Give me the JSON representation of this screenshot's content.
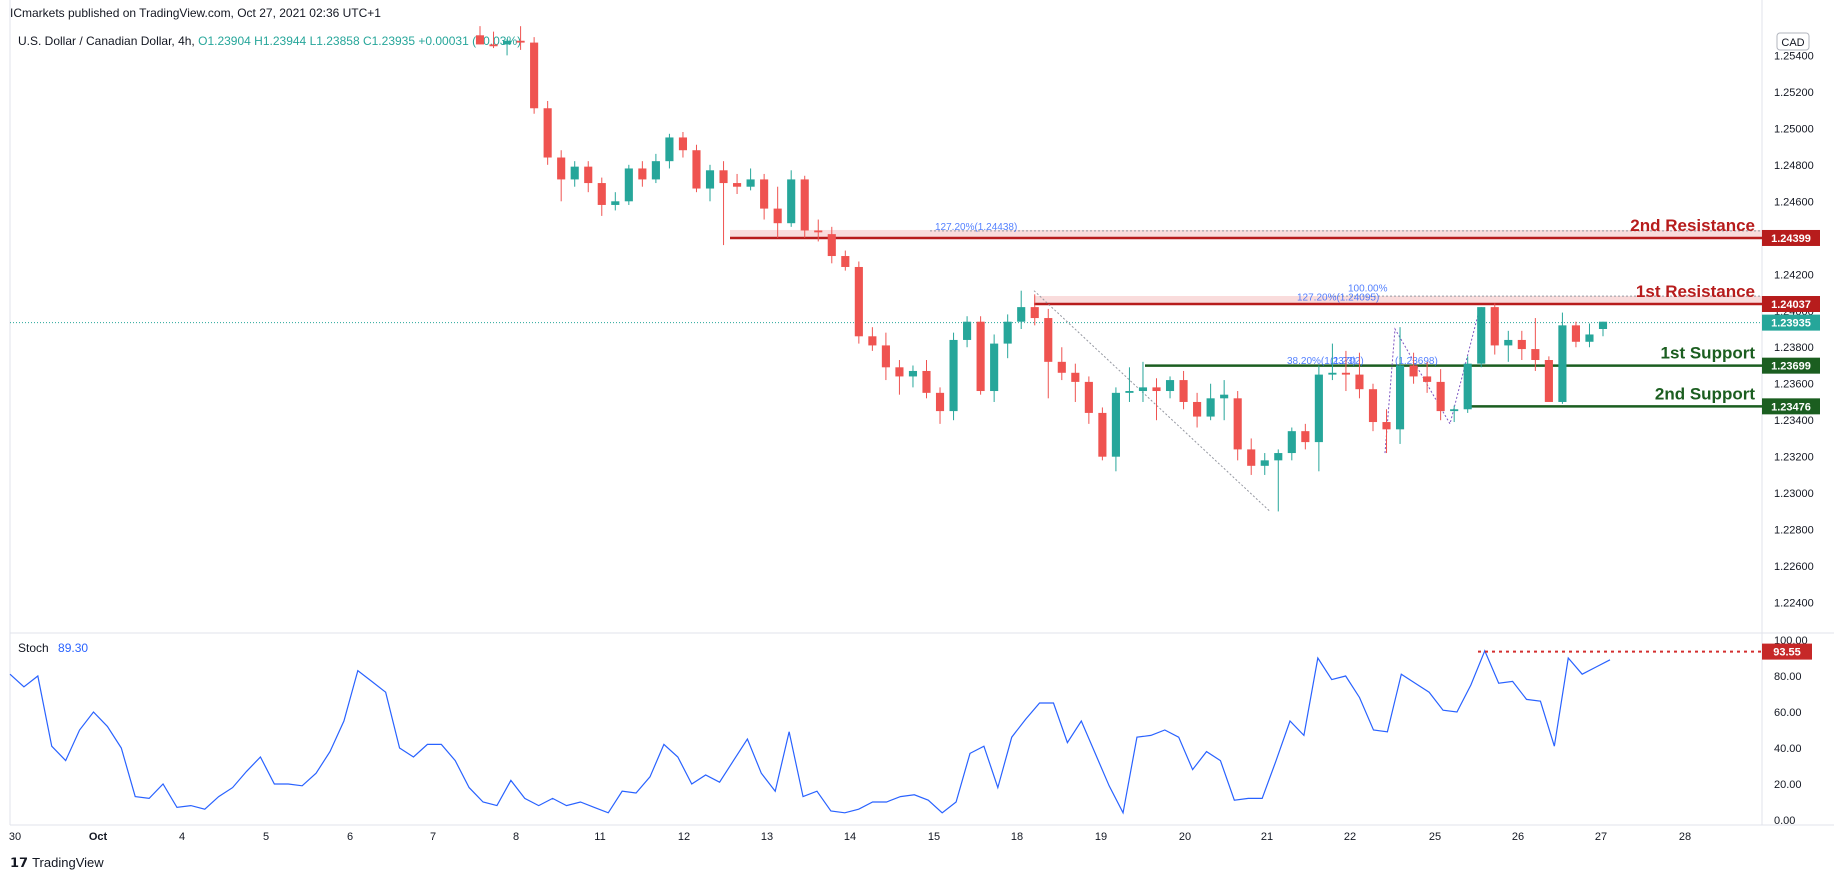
{
  "header": {
    "publisher": "ICmarkets published on TradingView.com, Oct 27, 2021 02:36 UTC+1"
  },
  "legend": {
    "symbol": "U.S. Dollar / Canadian Dollar, 4h,",
    "o": "O1.23904",
    "h": "H1.23944",
    "l": "L1.23858",
    "c": "C1.23935",
    "chg": "+0.00031 (+0.03%)"
  },
  "currency": "CAD",
  "stoch_label": "Stoch",
  "stoch_value": "89.30",
  "brand": "TradingView",
  "colors": {
    "up": "#26a69a",
    "down": "#ef5350",
    "resistance": "#b71c1c",
    "support": "#1b5e20",
    "stoch": "#2962ff"
  },
  "chart_data": [
    {
      "type": "candlestick",
      "title": "U.S. Dollar / Canadian Dollar, 4h",
      "x_ticks": [
        "30",
        "Oct",
        "4",
        "5",
        "6",
        "7",
        "8",
        "11",
        "12",
        "13",
        "14",
        "15",
        "18",
        "19",
        "20",
        "21",
        "22",
        "25",
        "26",
        "27",
        "28"
      ],
      "y_ticks": [
        "1.25400",
        "1.25200",
        "1.25000",
        "1.24800",
        "1.24600",
        "1.24400",
        "1.24200",
        "1.24000",
        "1.23800",
        "1.23600",
        "1.23400",
        "1.23200",
        "1.23000",
        "1.22800",
        "1.22600",
        "1.22400"
      ],
      "ylim": [
        1.2225,
        1.2555
      ],
      "candles": [
        [
          1.2551,
          1.2556,
          1.2546,
          1.2546
        ],
        [
          1.2546,
          1.2553,
          1.2544,
          1.2545
        ],
        [
          1.2546,
          1.2549,
          1.254,
          1.2548
        ],
        [
          1.2548,
          1.2556,
          1.2543,
          1.2547
        ],
        [
          1.2547,
          1.255,
          1.2508,
          1.2511
        ],
        [
          1.2511,
          1.2515,
          1.248,
          1.2484
        ],
        [
          1.2484,
          1.2488,
          1.246,
          1.2472
        ],
        [
          1.2472,
          1.2482,
          1.2468,
          1.2479
        ],
        [
          1.2479,
          1.2482,
          1.2465,
          1.247
        ],
        [
          1.247,
          1.2473,
          1.2452,
          1.2458
        ],
        [
          1.2458,
          1.2465,
          1.2455,
          1.246
        ],
        [
          1.246,
          1.248,
          1.2458,
          1.2478
        ],
        [
          1.2478,
          1.2482,
          1.2468,
          1.2472
        ],
        [
          1.2472,
          1.2486,
          1.247,
          1.2482
        ],
        [
          1.2482,
          1.2497,
          1.2478,
          1.2495
        ],
        [
          1.2495,
          1.2498,
          1.2484,
          1.2488
        ],
        [
          1.2488,
          1.2491,
          1.2465,
          1.2467
        ],
        [
          1.2467,
          1.248,
          1.246,
          1.2477
        ],
        [
          1.2477,
          1.2482,
          1.2436,
          1.247
        ],
        [
          1.247,
          1.2475,
          1.2464,
          1.2468
        ],
        [
          1.2468,
          1.2478,
          1.2466,
          1.2472
        ],
        [
          1.2472,
          1.2475,
          1.245,
          1.2456
        ],
        [
          1.2456,
          1.2468,
          1.244,
          1.2448
        ],
        [
          1.2448,
          1.2477,
          1.2446,
          1.2472
        ],
        [
          1.2472,
          1.2474,
          1.244,
          1.2444
        ],
        [
          1.2444,
          1.245,
          1.2438,
          1.2443
        ],
        [
          1.2442,
          1.2446,
          1.2426,
          1.243
        ],
        [
          1.243,
          1.2433,
          1.2422,
          1.2424
        ],
        [
          1.2424,
          1.2427,
          1.2382,
          1.2386
        ],
        [
          1.2386,
          1.2391,
          1.2378,
          1.2381
        ],
        [
          1.2381,
          1.2388,
          1.2362,
          1.2369
        ],
        [
          1.2369,
          1.2373,
          1.2354,
          1.2364
        ],
        [
          1.2364,
          1.237,
          1.2358,
          1.2367
        ],
        [
          1.2367,
          1.2373,
          1.2352,
          1.2355
        ],
        [
          1.2355,
          1.2358,
          1.2338,
          1.2345
        ],
        [
          1.2345,
          1.2388,
          1.234,
          1.2384
        ],
        [
          1.2384,
          1.2397,
          1.238,
          1.2394
        ],
        [
          1.2394,
          1.2397,
          1.2354,
          1.2356
        ],
        [
          1.2356,
          1.2387,
          1.235,
          1.2382
        ],
        [
          1.2382,
          1.2398,
          1.2374,
          1.2394
        ],
        [
          1.2394,
          1.2411,
          1.239,
          1.2402
        ],
        [
          1.2402,
          1.2409,
          1.2392,
          1.2396
        ],
        [
          1.2396,
          1.2401,
          1.2352,
          1.2372
        ],
        [
          1.2372,
          1.238,
          1.2362,
          1.2366
        ],
        [
          1.2366,
          1.2371,
          1.235,
          1.2361
        ],
        [
          1.2361,
          1.2364,
          1.2338,
          1.2344
        ],
        [
          1.2344,
          1.2347,
          1.2318,
          1.232
        ],
        [
          1.232,
          1.2358,
          1.2312,
          1.2355
        ],
        [
          1.2355,
          1.2369,
          1.235,
          1.2356
        ],
        [
          1.2356,
          1.2372,
          1.235,
          1.2358
        ],
        [
          1.2358,
          1.2363,
          1.234,
          1.2356
        ],
        [
          1.2356,
          1.2364,
          1.2352,
          1.2362
        ],
        [
          1.2362,
          1.2367,
          1.2346,
          1.235
        ],
        [
          1.235,
          1.2355,
          1.2336,
          1.2342
        ],
        [
          1.2342,
          1.236,
          1.234,
          1.2352
        ],
        [
          1.2352,
          1.2362,
          1.234,
          1.2354
        ],
        [
          1.2352,
          1.2356,
          1.2318,
          1.2324
        ],
        [
          1.2324,
          1.233,
          1.231,
          1.2315
        ],
        [
          1.2315,
          1.2322,
          1.231,
          1.2318
        ],
        [
          1.2318,
          1.2324,
          1.229,
          1.2322
        ],
        [
          1.2322,
          1.2336,
          1.2318,
          1.2334
        ],
        [
          1.2334,
          1.2338,
          1.2324,
          1.2328
        ],
        [
          1.2328,
          1.237,
          1.2312,
          1.2365
        ],
        [
          1.2365,
          1.2382,
          1.2362,
          1.2366
        ],
        [
          1.2366,
          1.2378,
          1.2356,
          1.2365
        ],
        [
          1.2365,
          1.2377,
          1.2352,
          1.2357
        ],
        [
          1.2357,
          1.236,
          1.2334,
          1.2339
        ],
        [
          1.2339,
          1.2346,
          1.2322,
          1.2335
        ],
        [
          1.2335,
          1.2391,
          1.2327,
          1.237
        ],
        [
          1.237,
          1.2377,
          1.236,
          1.2364
        ],
        [
          1.2364,
          1.2372,
          1.2355,
          1.2361
        ],
        [
          1.2361,
          1.2368,
          1.234,
          1.2345
        ],
        [
          1.2345,
          1.2348,
          1.2339,
          1.2346
        ],
        [
          1.2346,
          1.2375,
          1.2344,
          1.2371
        ],
        [
          1.2371,
          1.2402,
          1.2369,
          1.2402
        ],
        [
          1.2402,
          1.2404,
          1.2376,
          1.2381
        ],
        [
          1.2381,
          1.2389,
          1.2372,
          1.2384
        ],
        [
          1.2384,
          1.2389,
          1.2373,
          1.2379
        ],
        [
          1.2379,
          1.2396,
          1.2367,
          1.2373
        ],
        [
          1.2373,
          1.2375,
          1.2352,
          1.235
        ],
        [
          1.235,
          1.2399,
          1.2349,
          1.2392
        ],
        [
          1.2392,
          1.2394,
          1.238,
          1.2383
        ],
        [
          1.2383,
          1.2393,
          1.238,
          1.2387
        ],
        [
          1.239,
          1.2394,
          1.2386,
          1.2394
        ]
      ],
      "levels": [
        {
          "label": "2nd Resistance",
          "value": "1.24399"
        },
        {
          "label": "1st Resistance",
          "value": "1.24037"
        },
        {
          "label": "1st Support",
          "value": "1.23699"
        },
        {
          "label": "2nd Support",
          "value": "1.23476"
        }
      ],
      "current_price": "1.23935",
      "fib_labels": [
        "127.20%(1.24438)",
        "100.00%",
        "127.20%(1.24095)",
        "38.20%(1.23702)",
        "(1.23)",
        "(1.23698)"
      ]
    },
    {
      "type": "line",
      "title": "Stoch",
      "x_ticks": [
        "30",
        "Oct",
        "4",
        "5",
        "6",
        "7",
        "8",
        "11",
        "12",
        "13",
        "14",
        "15",
        "18",
        "19",
        "20",
        "21",
        "22",
        "25",
        "26",
        "27",
        "28"
      ],
      "y_ticks": [
        "100.00",
        "80.00",
        "60.00",
        "40.00",
        "20.00",
        "0.00"
      ],
      "ylim": [
        0,
        100
      ],
      "last_value": "89.30",
      "marker": "93.55",
      "series": [
        {
          "values": [
            81,
            74,
            80,
            41,
            33,
            50,
            60,
            52,
            40,
            13,
            12,
            20,
            7,
            8,
            6,
            13,
            18,
            27,
            35,
            20,
            20,
            19,
            26,
            38,
            55,
            83,
            77,
            71,
            40,
            35,
            42,
            42,
            33,
            18,
            10,
            8,
            22,
            12,
            8,
            12,
            8,
            10,
            7,
            4,
            16,
            15,
            24,
            42,
            35,
            20,
            25,
            21,
            33,
            45,
            26,
            16,
            49,
            13,
            16,
            5,
            4,
            6,
            10,
            10,
            13,
            14,
            11,
            4,
            10,
            37,
            41,
            18,
            46,
            56,
            65,
            65,
            43,
            55,
            37,
            19,
            4,
            46,
            47,
            50,
            46,
            28,
            38,
            33,
            11,
            12,
            12,
            33,
            55,
            47,
            90,
            78,
            80,
            68,
            50,
            49,
            81,
            76,
            71,
            61,
            60,
            75,
            94,
            76,
            77,
            67,
            66,
            41,
            90,
            81,
            85,
            89
          ]
        }
      ]
    }
  ]
}
